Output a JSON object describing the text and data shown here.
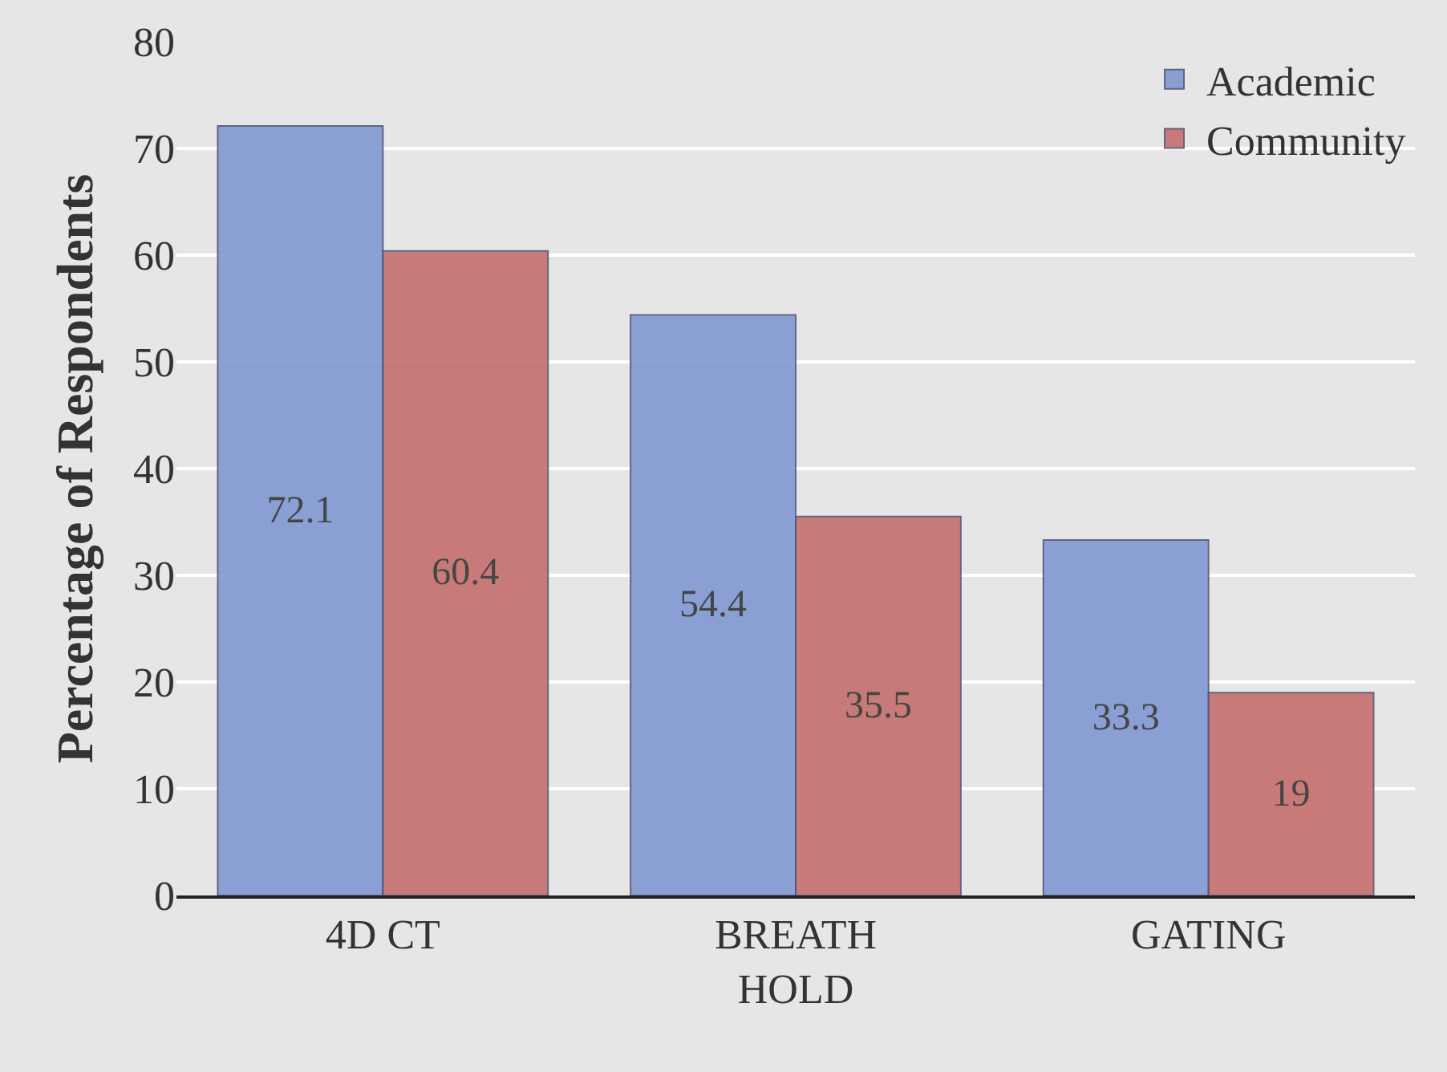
{
  "chart_data": {
    "type": "bar",
    "ylabel": "Percentage of Respondents",
    "categories": [
      "4D CT",
      "BREATH HOLD",
      "GATING"
    ],
    "series": [
      {
        "name": "Academic",
        "color": "#7f97d2",
        "values": [
          72.1,
          54.4,
          33.3
        ]
      },
      {
        "name": "Community",
        "color": "#c46e6d",
        "values": [
          60.4,
          35.5,
          19
        ]
      }
    ],
    "ylim": [
      0,
      80
    ],
    "yticks": [
      0,
      10,
      20,
      30,
      40,
      50,
      60,
      70,
      80
    ],
    "grid": "y",
    "legend": "top right",
    "data_labels": true
  }
}
